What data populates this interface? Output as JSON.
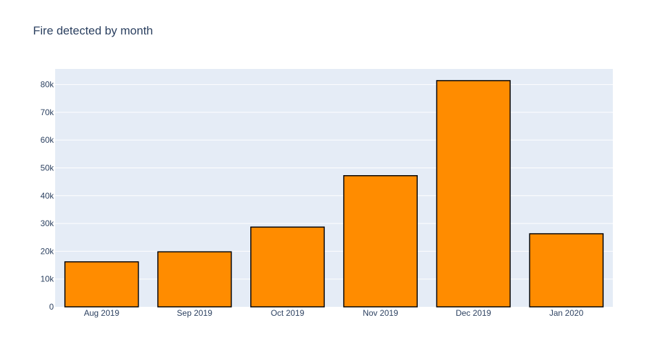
{
  "chart_data": {
    "type": "bar",
    "title": "Fire detected by month",
    "xlabel": "",
    "ylabel": "",
    "categories": [
      "Aug 2019",
      "Sep 2019",
      "Oct 2019",
      "Nov 2019",
      "Dec 2019",
      "Jan 2020"
    ],
    "values": [
      16200,
      19800,
      28700,
      47200,
      81400,
      26300
    ],
    "ylim": [
      0,
      85600
    ],
    "yticks": [
      0,
      10000,
      20000,
      30000,
      40000,
      50000,
      60000,
      70000,
      80000
    ],
    "ytick_labels": [
      "0",
      "10k",
      "20k",
      "30k",
      "40k",
      "50k",
      "60k",
      "70k",
      "80k"
    ],
    "grid": true,
    "colors": {
      "bar_fill": "#ff8c00",
      "bar_outline": "#000000",
      "plot_background": "#e5ecf6",
      "gridline": "#ffffff",
      "text": "#2a3f5f"
    }
  }
}
